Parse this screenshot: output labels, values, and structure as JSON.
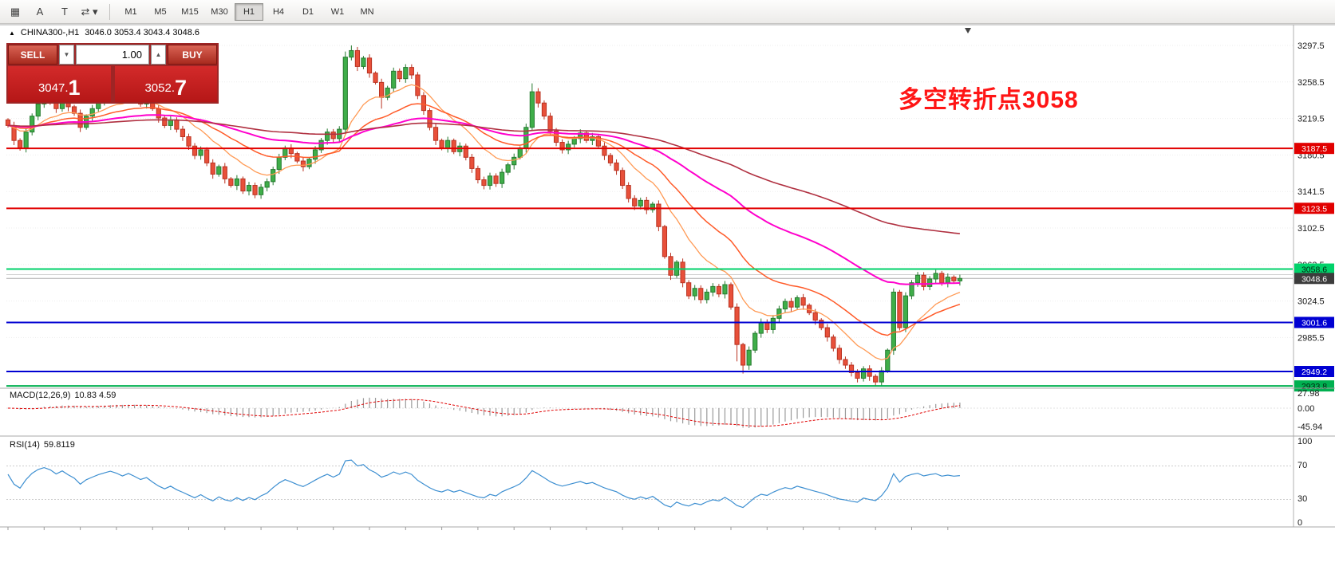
{
  "toolbar": {
    "grid_glyph": "▦",
    "arrow_glyph": "A",
    "text_glyph": "T",
    "objects_glyph": "⇄ ▾",
    "timeframes": [
      "M1",
      "M5",
      "M15",
      "M30",
      "H1",
      "H4",
      "D1",
      "W1",
      "MN"
    ],
    "active_timeframe": "H1"
  },
  "header": {
    "expander": "▲",
    "symbol": "CHINA300-,H1",
    "ohlc": "3046.0 3053.4 3043.4 3048.6"
  },
  "trade": {
    "sell_label": "SELL",
    "buy_label": "BUY",
    "volume": "1.00",
    "spinner_down": "▼",
    "spinner_up": "▲",
    "price_separator": ".",
    "sell_price_main": "3047",
    "sell_price_frac": "1",
    "buy_price_main": "3052",
    "buy_price_frac": "7"
  },
  "annotation": {
    "text": "多空转折点3058",
    "color": "#ff1515"
  },
  "chart_data": {
    "type": "candlestick",
    "symbol": "CHINA300-",
    "timeframe": "H1",
    "current_bar": {
      "open": 3046.0,
      "high": 3053.4,
      "low": 3043.4,
      "close": 3048.6
    },
    "bid": 3047.1,
    "ask_price": 3052.7,
    "first_open": 3218,
    "closes": [
      3212,
      3196,
      3188,
      3205,
      3222,
      3235,
      3242,
      3238,
      3230,
      3240,
      3232,
      3225,
      3210,
      3222,
      3230,
      3238,
      3244,
      3250,
      3246,
      3240,
      3248,
      3242,
      3235,
      3240,
      3230,
      3220,
      3212,
      3218,
      3208,
      3200,
      3190,
      3180,
      3186,
      3172,
      3160,
      3168,
      3155,
      3148,
      3155,
      3142,
      3148,
      3138,
      3146,
      3152,
      3165,
      3178,
      3188,
      3182,
      3174,
      3168,
      3176,
      3186,
      3196,
      3205,
      3198,
      3208,
      3285,
      3292,
      3275,
      3284,
      3268,
      3258,
      3242,
      3252,
      3270,
      3262,
      3274,
      3266,
      3244,
      3228,
      3210,
      3196,
      3188,
      3196,
      3184,
      3190,
      3178,
      3166,
      3154,
      3148,
      3158,
      3150,
      3162,
      3170,
      3178,
      3188,
      3210,
      3248,
      3236,
      3222,
      3206,
      3194,
      3186,
      3192,
      3198,
      3204,
      3196,
      3200,
      3190,
      3180,
      3172,
      3164,
      3148,
      3134,
      3126,
      3132,
      3122,
      3128,
      3104,
      3072,
      3052,
      3066,
      3044,
      3030,
      3038,
      3026,
      3034,
      3040,
      3032,
      3042,
      3018,
      2978,
      2956,
      2972,
      2990,
      3002,
      2994,
      3006,
      3016,
      3024,
      3018,
      3028,
      3020,
      3012,
      3004,
      2996,
      2986,
      2974,
      2962,
      2956,
      2948,
      2942,
      2952,
      2944,
      2938,
      2950,
      2972,
      3034,
      2996,
      3030,
      3044,
      3052,
      3040,
      3048,
      3054,
      3044,
      3050,
      3046,
      3048.6
    ],
    "wick_overrides": {
      "56": {
        "high": 3291
      },
      "57": {
        "high": 3297.5
      },
      "62": {
        "low": 3230
      },
      "87": {
        "high": 3257
      },
      "121": {
        "low": 2960
      },
      "122": {
        "low": 2947
      },
      "144": {
        "low": 2933.8
      }
    },
    "candle_colors": {
      "up": "#3fae49",
      "up_border": "#267a30",
      "down": "#e8503a",
      "down_border": "#b93322"
    },
    "moving_averages": [
      {
        "name": "ma-fast-orange",
        "period": 12,
        "color": "#ff9a55",
        "width": 1.3
      },
      {
        "name": "ma-mid-orange",
        "period": 26,
        "color": "#ff5a28",
        "width": 1.5
      },
      {
        "name": "ma-slow-magenta",
        "period": 60,
        "color": "#ff00cc",
        "width": 2
      },
      {
        "name": "ma-trend-darkred",
        "period": 130,
        "color": "#b03040",
        "width": 1.6
      }
    ],
    "levels": [
      {
        "price": 3187.5,
        "label": "3187.5",
        "color": "#e10000",
        "text_color": "#ffffff",
        "width": 2
      },
      {
        "price": 3123.5,
        "label": "3123.5",
        "color": "#e10000",
        "text_color": "#ffffff",
        "width": 2
      },
      {
        "price": 3058.6,
        "label": "3058.6",
        "color": "#00d26a",
        "text_color": "#00220f",
        "width": 2
      },
      {
        "price": 3001.6,
        "label": "3001.6",
        "color": "#0000d2",
        "text_color": "#ffffff",
        "width": 2
      },
      {
        "price": 2949.2,
        "label": "2949.2",
        "color": "#0000d2",
        "text_color": "#ffffff",
        "width": 2
      },
      {
        "price": 2933.8,
        "label": "2933.8",
        "color": "#00b050",
        "text_color": "#00220f",
        "width": 2
      }
    ],
    "current_price": {
      "value": 3048.6,
      "label": "3048.6",
      "tag_color": "#3c3c3c"
    },
    "y_axis": {
      "labels": [
        "3297.5",
        "3258.5",
        "3219.5",
        "3180.5",
        "3141.5",
        "3102.5",
        "3063.5",
        "3024.5",
        "2985.5"
      ]
    },
    "indicators": {
      "macd": {
        "title": "MACD(12,26,9)",
        "values_text": "10.83 4.59",
        "axis_labels": [
          "27.98",
          "0.00",
          "-45.94"
        ],
        "histogram_color": "#9a9a9a",
        "signal_color": "#e00000"
      },
      "rsi": {
        "title": "RSI(14)",
        "values_text": "59.8119",
        "axis_labels": [
          "100",
          "70",
          "30",
          "0"
        ],
        "levels": [
          70,
          30
        ],
        "line_color": "#3d8fd1"
      }
    }
  }
}
